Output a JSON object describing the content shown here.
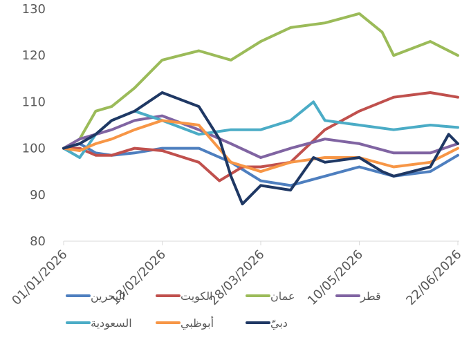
{
  "chart_data": {
    "type": "line",
    "title": "",
    "xlabel": "",
    "ylabel": "",
    "ylim": [
      80,
      130
    ],
    "y_ticks": [
      80,
      90,
      100,
      110,
      120,
      130
    ],
    "x_range": [
      "01/01/2026",
      "22/06/2026"
    ],
    "x_ticks": [
      "01/01/2026",
      "13/02/2026",
      "28/03/2026",
      "10/05/2026",
      "22/06/2026"
    ],
    "grid": false,
    "legend_position": "bottom",
    "series": [
      {
        "name": "البحرين",
        "color": "#4e7fbf",
        "points": [
          [
            "01/01/2026",
            100
          ],
          [
            "08/01/2026",
            101
          ],
          [
            "15/01/2026",
            99
          ],
          [
            "22/01/2026",
            98.5
          ],
          [
            "01/02/2026",
            99
          ],
          [
            "13/02/2026",
            100
          ],
          [
            "01/03/2026",
            100
          ],
          [
            "15/03/2026",
            97
          ],
          [
            "28/03/2026",
            93
          ],
          [
            "10/04/2026",
            92
          ],
          [
            "25/04/2026",
            94
          ],
          [
            "10/05/2026",
            96
          ],
          [
            "25/05/2026",
            94
          ],
          [
            "10/06/2026",
            95
          ],
          [
            "22/06/2026",
            98.5
          ]
        ]
      },
      {
        "name": "الكويت",
        "color": "#c0504d",
        "points": [
          [
            "01/01/2026",
            100
          ],
          [
            "08/01/2026",
            100
          ],
          [
            "15/01/2026",
            98.5
          ],
          [
            "22/01/2026",
            98.5
          ],
          [
            "01/02/2026",
            100
          ],
          [
            "13/02/2026",
            99.5
          ],
          [
            "01/03/2026",
            97
          ],
          [
            "10/03/2026",
            93
          ],
          [
            "20/03/2026",
            96
          ],
          [
            "28/03/2026",
            96
          ],
          [
            "10/04/2026",
            97
          ],
          [
            "25/04/2026",
            104
          ],
          [
            "10/05/2026",
            108
          ],
          [
            "25/05/2026",
            111
          ],
          [
            "10/06/2026",
            112
          ],
          [
            "22/06/2026",
            111
          ]
        ]
      },
      {
        "name": "عمان",
        "color": "#9bbb59",
        "points": [
          [
            "01/01/2026",
            100
          ],
          [
            "08/01/2026",
            102
          ],
          [
            "15/01/2026",
            108
          ],
          [
            "22/01/2026",
            109
          ],
          [
            "01/02/2026",
            113
          ],
          [
            "13/02/2026",
            119
          ],
          [
            "01/03/2026",
            121
          ],
          [
            "15/03/2026",
            119
          ],
          [
            "28/03/2026",
            123
          ],
          [
            "10/04/2026",
            126
          ],
          [
            "25/04/2026",
            127
          ],
          [
            "10/05/2026",
            129
          ],
          [
            "20/05/2026",
            125
          ],
          [
            "25/05/2026",
            120
          ],
          [
            "10/06/2026",
            123
          ],
          [
            "22/06/2026",
            120
          ]
        ]
      },
      {
        "name": "قطر",
        "color": "#8064a2",
        "points": [
          [
            "01/01/2026",
            100
          ],
          [
            "08/01/2026",
            102
          ],
          [
            "15/01/2026",
            103
          ],
          [
            "22/01/2026",
            104
          ],
          [
            "01/02/2026",
            106
          ],
          [
            "13/02/2026",
            107
          ],
          [
            "01/03/2026",
            104
          ],
          [
            "15/03/2026",
            101
          ],
          [
            "28/03/2026",
            98
          ],
          [
            "10/04/2026",
            100
          ],
          [
            "25/04/2026",
            102
          ],
          [
            "10/05/2026",
            101
          ],
          [
            "25/05/2026",
            99
          ],
          [
            "10/06/2026",
            99
          ],
          [
            "22/06/2026",
            101
          ]
        ]
      },
      {
        "name": "السعودية",
        "color": "#4bacc6",
        "points": [
          [
            "01/01/2026",
            100
          ],
          [
            "08/01/2026",
            98
          ],
          [
            "15/01/2026",
            103
          ],
          [
            "22/01/2026",
            106
          ],
          [
            "01/02/2026",
            108
          ],
          [
            "13/02/2026",
            106
          ],
          [
            "01/03/2026",
            103
          ],
          [
            "15/03/2026",
            104
          ],
          [
            "28/03/2026",
            104
          ],
          [
            "10/04/2026",
            106
          ],
          [
            "20/04/2026",
            110
          ],
          [
            "25/04/2026",
            106
          ],
          [
            "10/05/2026",
            105
          ],
          [
            "25/05/2026",
            104
          ],
          [
            "10/06/2026",
            105
          ],
          [
            "22/06/2026",
            104.5
          ]
        ]
      },
      {
        "name": "أبوظبي",
        "color": "#f79646",
        "points": [
          [
            "01/01/2026",
            100
          ],
          [
            "08/01/2026",
            99.5
          ],
          [
            "15/01/2026",
            101
          ],
          [
            "22/01/2026",
            102
          ],
          [
            "01/02/2026",
            104
          ],
          [
            "13/02/2026",
            106
          ],
          [
            "01/03/2026",
            105
          ],
          [
            "15/03/2026",
            97
          ],
          [
            "28/03/2026",
            95
          ],
          [
            "10/04/2026",
            97
          ],
          [
            "25/04/2026",
            98
          ],
          [
            "10/05/2026",
            98
          ],
          [
            "25/05/2026",
            96
          ],
          [
            "10/06/2026",
            97
          ],
          [
            "22/06/2026",
            100
          ]
        ]
      },
      {
        "name": "دبيّ",
        "color": "#1f3864",
        "points": [
          [
            "01/01/2026",
            100
          ],
          [
            "08/01/2026",
            101
          ],
          [
            "15/01/2026",
            103
          ],
          [
            "22/01/2026",
            106
          ],
          [
            "01/02/2026",
            108
          ],
          [
            "13/02/2026",
            112
          ],
          [
            "01/03/2026",
            109
          ],
          [
            "10/03/2026",
            102
          ],
          [
            "15/03/2026",
            94
          ],
          [
            "20/03/2026",
            88
          ],
          [
            "28/03/2026",
            92
          ],
          [
            "10/04/2026",
            91
          ],
          [
            "20/04/2026",
            98
          ],
          [
            "25/04/2026",
            97
          ],
          [
            "10/05/2026",
            98
          ],
          [
            "20/05/2026",
            95
          ],
          [
            "25/05/2026",
            94
          ],
          [
            "10/06/2026",
            96
          ],
          [
            "18/06/2026",
            103
          ],
          [
            "22/06/2026",
            101
          ]
        ]
      }
    ]
  }
}
